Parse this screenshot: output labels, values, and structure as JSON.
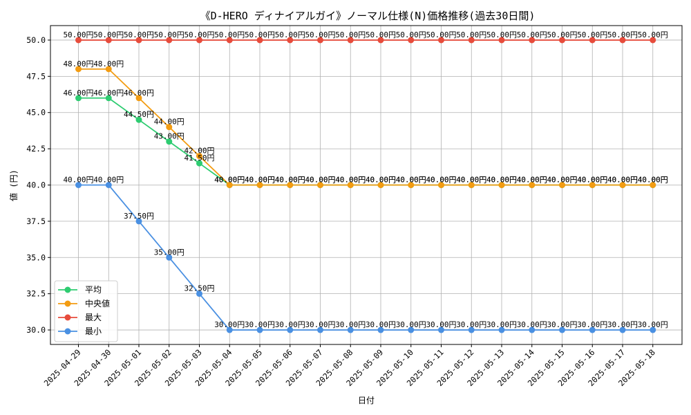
{
  "chart_data": {
    "type": "line",
    "title": "《D-HERO ディナイアルガイ》ノーマル仕様(N)価格推移(過去30日間)",
    "xlabel": "日付",
    "ylabel": "値 (円)",
    "ylim": [
      29.0,
      51.0
    ],
    "yticks": [
      30.0,
      32.5,
      35.0,
      37.5,
      40.0,
      42.5,
      45.0,
      47.5,
      50.0
    ],
    "ytick_labels": [
      "30.0",
      "32.5",
      "35.0",
      "37.5",
      "40.0",
      "42.5",
      "45.0",
      "47.5",
      "50.0"
    ],
    "grid": true,
    "legend_position": "lower-left",
    "label_suffix": "円",
    "categories": [
      "2025-04-29",
      "2025-04-30",
      "2025-05-01",
      "2025-05-02",
      "2025-05-03",
      "2025-05-04",
      "2025-05-05",
      "2025-05-06",
      "2025-05-07",
      "2025-05-08",
      "2025-05-09",
      "2025-05-10",
      "2025-05-11",
      "2025-05-12",
      "2025-05-13",
      "2025-05-14",
      "2025-05-15",
      "2025-05-16",
      "2025-05-17",
      "2025-05-18"
    ],
    "series": [
      {
        "name": "平均",
        "color": "#2ecc71",
        "values": [
          46.0,
          46.0,
          44.5,
          43.0,
          41.5,
          40.0,
          40.0,
          40.0,
          40.0,
          40.0,
          40.0,
          40.0,
          40.0,
          40.0,
          40.0,
          40.0,
          40.0,
          40.0,
          40.0,
          40.0
        ]
      },
      {
        "name": "中央値",
        "color": "#f39c12",
        "values": [
          48.0,
          48.0,
          46.0,
          44.0,
          42.0,
          40.0,
          40.0,
          40.0,
          40.0,
          40.0,
          40.0,
          40.0,
          40.0,
          40.0,
          40.0,
          40.0,
          40.0,
          40.0,
          40.0,
          40.0
        ]
      },
      {
        "name": "最大",
        "color": "#e74c3c",
        "values": [
          50.0,
          50.0,
          50.0,
          50.0,
          50.0,
          50.0,
          50.0,
          50.0,
          50.0,
          50.0,
          50.0,
          50.0,
          50.0,
          50.0,
          50.0,
          50.0,
          50.0,
          50.0,
          50.0,
          50.0
        ]
      },
      {
        "name": "最小",
        "color": "#4a90e2",
        "values": [
          40.0,
          40.0,
          37.5,
          35.0,
          32.5,
          30.0,
          30.0,
          30.0,
          30.0,
          30.0,
          30.0,
          30.0,
          30.0,
          30.0,
          30.0,
          30.0,
          30.0,
          30.0,
          30.0,
          30.0
        ]
      }
    ]
  }
}
